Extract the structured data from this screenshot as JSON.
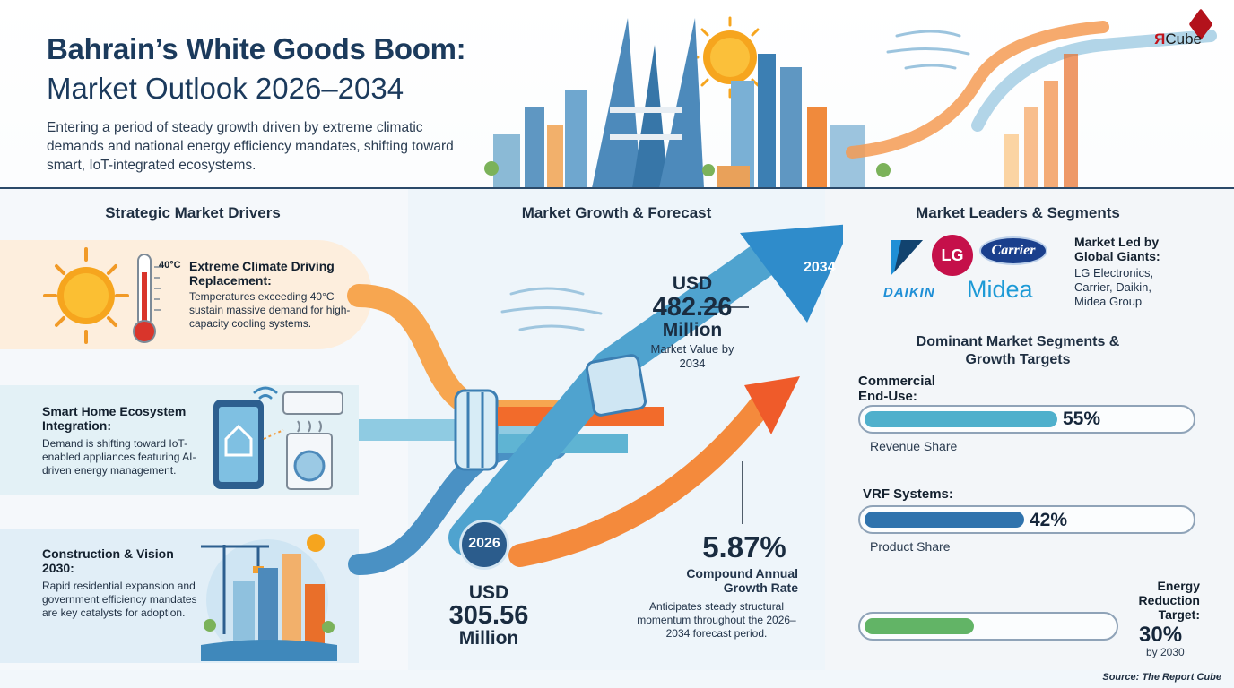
{
  "header": {
    "title_line1": "Bahrain’s White Goods Boom:",
    "title_line2": "Market Outlook 2026–2034",
    "subtitle": "Entering a period of steady growth driven by extreme climatic demands and national energy efficiency mandates, shifting toward smart, IoT-integrated ecosystems.",
    "logo_mark": "Я",
    "logo_text": "Cube"
  },
  "drivers": {
    "heading": "Strategic Market Drivers",
    "items": [
      {
        "title": "Extreme Climate Driving Replacement:",
        "text": "Temperatures exceeding 40°C sustain massive demand for high-capacity cooling systems.",
        "badge": "40°C",
        "icon": "sun-thermometer-icon"
      },
      {
        "title": "Smart Home Ecosystem Integration:",
        "text": "Demand is shifting toward IoT-enabled appliances featuring AI-driven energy management.",
        "icon": "smart-home-appliances-icon"
      },
      {
        "title": "Construction & Vision 2030:",
        "text": "Rapid residential expansion and government efficiency mandates are key catalysts for adoption.",
        "icon": "construction-crane-icon"
      }
    ]
  },
  "forecast": {
    "heading": "Market Growth & Forecast",
    "start_year": "2026",
    "end_year": "2034",
    "start_value": {
      "currency": "USD",
      "amount": "305.56",
      "unit": "Million"
    },
    "end_value": {
      "currency": "USD",
      "amount": "482.26",
      "unit": "Million",
      "caption": "Market Value by 2034"
    },
    "cagr": {
      "value": "5.87%",
      "label": "Compound Annual Growth Rate",
      "text": "Anticipates steady structural momentum throughout the 2026–2034 forecast period."
    }
  },
  "leaders": {
    "heading": "Market Leaders & Segments",
    "label": "Market Led by Global Giants:",
    "list": "LG Electronics, Carrier, Daikin, Midea Group",
    "logos": {
      "lg": "LG",
      "carrier": "Carrier",
      "daikin": "DAIKIN",
      "midea": "Midea"
    },
    "colors": {
      "lg": "#c5104a",
      "carrier": "#1a3f8c",
      "daikin": "#1f8fd6",
      "midea": "#1d9ad6"
    }
  },
  "segments": {
    "heading": "Dominant Market Segments & Growth Targets",
    "items": [
      {
        "label": "Commercial End-Use:",
        "value": 55,
        "value_text": "55%",
        "sub": "Revenue Share",
        "color": "#4fb0cc"
      },
      {
        "label": "VRF Systems:",
        "value": 42,
        "value_text": "42%",
        "sub": "Product Share",
        "color": "#2f73ad"
      },
      {
        "label": "Energy Reduction Target:",
        "value": 30,
        "value_text": "30%",
        "sub": "by 2030",
        "color": "#62b466"
      }
    ]
  },
  "source": "Source: The Report Cube"
}
